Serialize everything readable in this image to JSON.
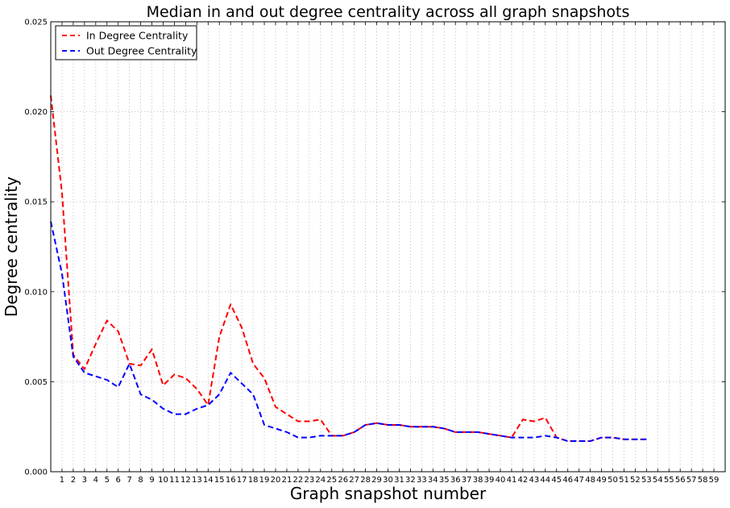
{
  "chart_data": {
    "type": "line",
    "title": "Median in and out degree centrality across all graph snapshots",
    "xlabel": "Graph snapshot number",
    "ylabel": "Degree centrality",
    "xlim": [
      0,
      60
    ],
    "ylim": [
      0,
      0.025
    ],
    "x_ticks": [
      1,
      2,
      3,
      4,
      5,
      6,
      7,
      8,
      9,
      10,
      11,
      12,
      13,
      14,
      15,
      16,
      17,
      18,
      19,
      20,
      21,
      22,
      23,
      24,
      25,
      26,
      27,
      28,
      29,
      30,
      31,
      32,
      33,
      34,
      35,
      36,
      37,
      38,
      39,
      40,
      41,
      42,
      43,
      44,
      45,
      46,
      47,
      48,
      49,
      50,
      51,
      52,
      53,
      54,
      55,
      56,
      57,
      58,
      59
    ],
    "y_ticks": [
      0,
      0.005,
      0.01,
      0.015,
      0.02,
      0.025
    ],
    "y_tick_labels": [
      "0.000",
      "0.005",
      "0.010",
      "0.015",
      "0.020",
      "0.025"
    ],
    "grid": true,
    "legend_position": "top-left",
    "x": [
      0,
      1,
      2,
      3,
      4,
      5,
      6,
      7,
      8,
      9,
      10,
      11,
      12,
      13,
      14,
      15,
      16,
      17,
      18,
      19,
      20,
      21,
      22,
      23,
      24,
      25,
      26,
      27,
      28,
      29,
      30,
      31,
      32,
      33,
      34,
      35,
      36,
      37,
      38,
      39,
      40,
      41,
      42,
      43,
      44,
      45,
      46,
      47,
      48,
      49,
      50,
      51,
      52,
      53
    ],
    "series": [
      {
        "name": "In Degree Centrality",
        "color": "#ff0000",
        "line_style": "dashed",
        "values": [
          0.0209,
          0.0155,
          0.0065,
          0.0057,
          0.0071,
          0.0084,
          0.0078,
          0.006,
          0.0059,
          0.0068,
          0.0048,
          0.0054,
          0.0052,
          0.0046,
          0.0037,
          0.0075,
          0.0093,
          0.008,
          0.006,
          0.0052,
          0.0036,
          0.0032,
          0.0028,
          0.0028,
          0.0029,
          0.002,
          0.002,
          0.0022,
          0.0026,
          0.0027,
          0.0026,
          0.0026,
          0.0025,
          0.0025,
          0.0025,
          0.0024,
          0.0022,
          0.0022,
          0.0022,
          0.0021,
          0.002,
          0.0019,
          0.0029,
          0.0028,
          0.003,
          0.0019,
          0.0017,
          0.0017,
          0.0017,
          0.0019,
          0.0019,
          0.0018,
          0.0018,
          0.0018
        ]
      },
      {
        "name": "Out Degree Centrality",
        "color": "#0000ff",
        "line_style": "dashed",
        "values": [
          0.0139,
          0.011,
          0.0064,
          0.0055,
          0.0053,
          0.0051,
          0.0047,
          0.006,
          0.0043,
          0.004,
          0.0035,
          0.0032,
          0.0032,
          0.0035,
          0.0037,
          0.0043,
          0.0055,
          0.0049,
          0.0043,
          0.0026,
          0.0024,
          0.0022,
          0.0019,
          0.0019,
          0.002,
          0.002,
          0.002,
          0.0022,
          0.0026,
          0.0027,
          0.0026,
          0.0026,
          0.0025,
          0.0025,
          0.0025,
          0.0024,
          0.0022,
          0.0022,
          0.0022,
          0.0021,
          0.002,
          0.0019,
          0.0019,
          0.0019,
          0.002,
          0.0019,
          0.0017,
          0.0017,
          0.0017,
          0.0019,
          0.0019,
          0.0018,
          0.0018,
          0.0018
        ]
      }
    ]
  }
}
